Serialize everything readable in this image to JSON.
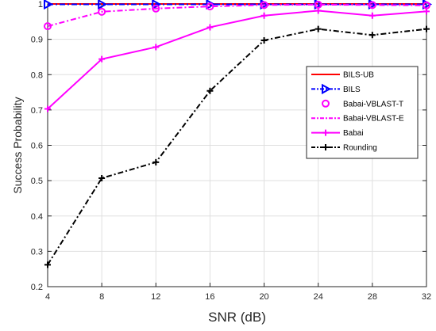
{
  "chart_data": {
    "type": "line",
    "title": "",
    "xlabel": "SNR (dB)",
    "ylabel": "Success Probability",
    "x": [
      4,
      8,
      12,
      16,
      20,
      24,
      28,
      32
    ],
    "xlim": [
      4,
      32
    ],
    "ylim": [
      0.2,
      1.0
    ],
    "xticks": [
      4,
      8,
      12,
      16,
      20,
      24,
      28,
      32
    ],
    "yticks": [
      0.2,
      0.3,
      0.4,
      0.5,
      0.6,
      0.7,
      0.8,
      0.9,
      1
    ],
    "grid": true,
    "legend_position": "right",
    "series": [
      {
        "name": "BILS-UB",
        "values": [
          1,
          1,
          1,
          1,
          1,
          1,
          1,
          1
        ],
        "color": "#ff0000",
        "line_style": "solid",
        "marker": "none"
      },
      {
        "name": "BILS",
        "values": [
          0.999,
          0.999,
          0.999,
          0.999,
          0.999,
          0.999,
          0.999,
          0.999
        ],
        "color": "#0000ff",
        "line_style": "dashdot",
        "marker": "triangle-right"
      },
      {
        "name": "Babai-VBLAST-T",
        "values": [
          0.937,
          0.978,
          0.987,
          0.993,
          0.997,
          0.998,
          0.997,
          0.996
        ],
        "color": "#ff00ff",
        "line_style": "none",
        "marker": "circle"
      },
      {
        "name": "Babai-VBLAST-E",
        "values": [
          0.937,
          0.978,
          0.987,
          0.993,
          0.997,
          0.998,
          0.997,
          0.996
        ],
        "color": "#ff00ff",
        "line_style": "dashdot",
        "marker": "none"
      },
      {
        "name": "Babai",
        "values": [
          0.703,
          0.844,
          0.878,
          0.934,
          0.967,
          0.981,
          0.967,
          0.979
        ],
        "color": "#ff00ff",
        "line_style": "solid",
        "marker": "plus"
      },
      {
        "name": "Rounding",
        "values": [
          0.262,
          0.507,
          0.552,
          0.754,
          0.897,
          0.929,
          0.912,
          0.929
        ],
        "color": "#000000",
        "line_style": "dashdot",
        "marker": "plus"
      }
    ]
  }
}
